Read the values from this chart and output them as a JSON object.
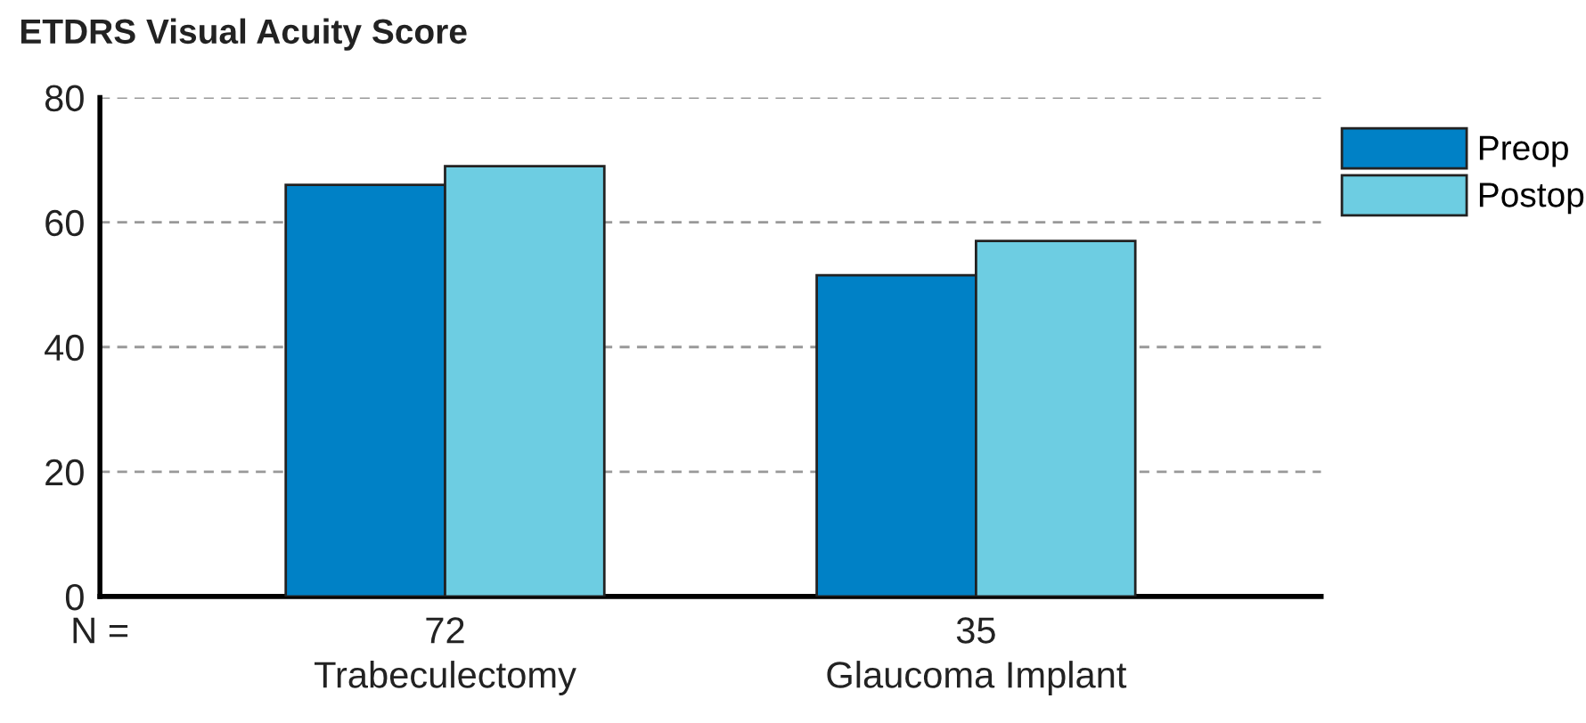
{
  "chart_data": {
    "type": "bar",
    "title": "ETDRS Visual Acuity Score",
    "categories": [
      "Trabeculectomy",
      "Glaucoma Implant"
    ],
    "series": [
      {
        "name": "Preop",
        "color": "#0081c6",
        "values": [
          66,
          51.5
        ]
      },
      {
        "name": "Postop",
        "color": "#6dcde2",
        "values": [
          69,
          57
        ]
      }
    ],
    "ylim": [
      0,
      80
    ],
    "yticks": [
      0,
      20,
      40,
      60,
      80
    ],
    "grid": "y",
    "legend": "top right",
    "annotations": [
      "N =",
      "72",
      "35"
    ]
  }
}
